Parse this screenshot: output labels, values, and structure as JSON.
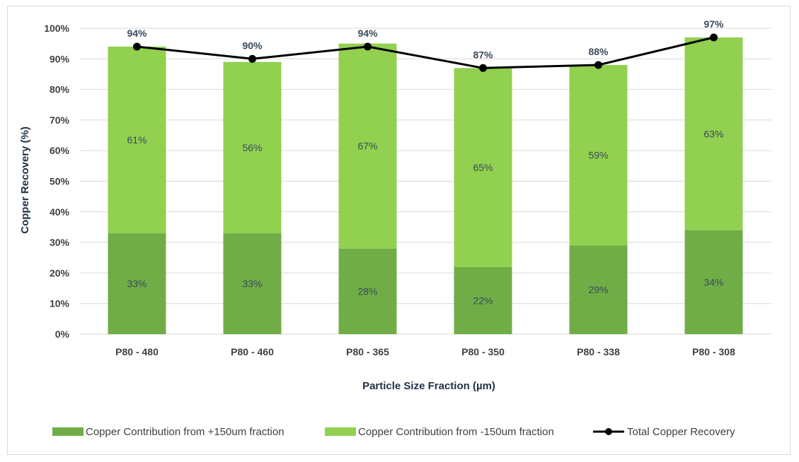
{
  "chart_data": {
    "type": "bar",
    "stacked": true,
    "categories": [
      "P80 - 480",
      "P80 - 460",
      "P80 - 365",
      "P80 - 350",
      "P80 - 338",
      "P80 - 308"
    ],
    "series": [
      {
        "name": "Copper Contribution from +150um fraction",
        "type": "bar",
        "color": "#70ad47",
        "values": [
          33,
          33,
          28,
          22,
          29,
          34
        ],
        "labels": [
          "33%",
          "33%",
          "28%",
          "22%",
          "29%",
          "34%"
        ]
      },
      {
        "name": "Copper Contribution from -150um fraction",
        "type": "bar",
        "color": "#92d050",
        "values": [
          61,
          56,
          67,
          65,
          59,
          63
        ],
        "labels": [
          "61%",
          "56%",
          "67%",
          "65%",
          "59%",
          "63%"
        ]
      },
      {
        "name": "Total Copper Recovery",
        "type": "line",
        "color": "#000000",
        "values": [
          94,
          90,
          94,
          87,
          88,
          97
        ],
        "labels": [
          "94%",
          "90%",
          "94%",
          "87%",
          "88%",
          "97%"
        ]
      }
    ],
    "xlabel": "Particle Size Fraction (µm)",
    "ylabel": "Copper Recovery (%)",
    "ylim": [
      0,
      100
    ],
    "yticks": [
      "0%",
      "10%",
      "20%",
      "30%",
      "40%",
      "50%",
      "60%",
      "70%",
      "80%",
      "90%",
      "100%"
    ],
    "grid": true,
    "legend": "bottom"
  }
}
